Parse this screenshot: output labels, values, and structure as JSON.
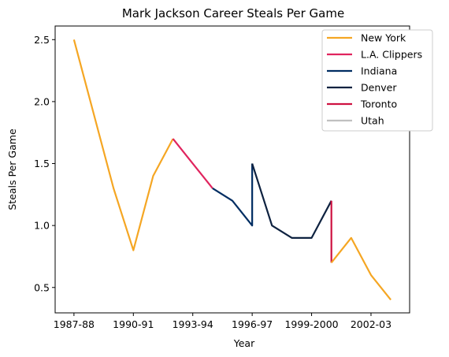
{
  "chart_data": {
    "type": "line",
    "title": "Mark Jackson  Career Steals Per Game",
    "xlabel": "Year",
    "ylabel": "Steals Per Game",
    "x_tick_labels": [
      "1987-88",
      "1990-91",
      "1993-94",
      "1996-97",
      "1999-2000",
      "2002-03"
    ],
    "x_tick_positions": [
      0,
      3,
      6,
      9,
      12,
      15
    ],
    "y_ticks": [
      0.5,
      1.0,
      1.5,
      2.0,
      2.5
    ],
    "y_tick_labels": [
      "0.5",
      "1.0",
      "1.5",
      "2.0",
      "2.5"
    ],
    "xlim": [
      -0.95,
      16.95
    ],
    "ylim": [
      0.295,
      2.61
    ],
    "grid": false,
    "legend_position": "top-right",
    "series": [
      {
        "name": "New York",
        "color": "#F5A623",
        "x": [
          0,
          1,
          2,
          3,
          4,
          5
        ],
        "y": [
          2.5,
          1.9,
          1.3,
          0.8,
          1.4,
          1.7
        ]
      },
      {
        "name": "L.A. Clippers",
        "color": "#E0245E",
        "x": [
          5,
          6,
          7
        ],
        "y": [
          1.7,
          1.5,
          1.3
        ]
      },
      {
        "name": "Indiana",
        "color": "#002D62",
        "x": [
          7,
          8,
          9,
          9
        ],
        "y": [
          1.3,
          1.2,
          1.0,
          1.5
        ]
      },
      {
        "name": "Denver",
        "color": "#0E2240",
        "x": [
          9,
          10,
          11,
          12,
          13
        ],
        "y": [
          1.5,
          1.0,
          0.9,
          0.9,
          1.2
        ]
      },
      {
        "name": "Toronto",
        "color": "#CE1141",
        "x": [
          13,
          13
        ],
        "y": [
          1.2,
          0.7
        ]
      },
      {
        "name": "Utah",
        "color": "#C0C0C0",
        "x": [],
        "y": []
      },
      {
        "name": "",
        "color": "#F5A623",
        "x": [
          13,
          14,
          15,
          16
        ],
        "y": [
          0.7,
          0.9,
          0.6,
          0.4
        ]
      }
    ]
  }
}
